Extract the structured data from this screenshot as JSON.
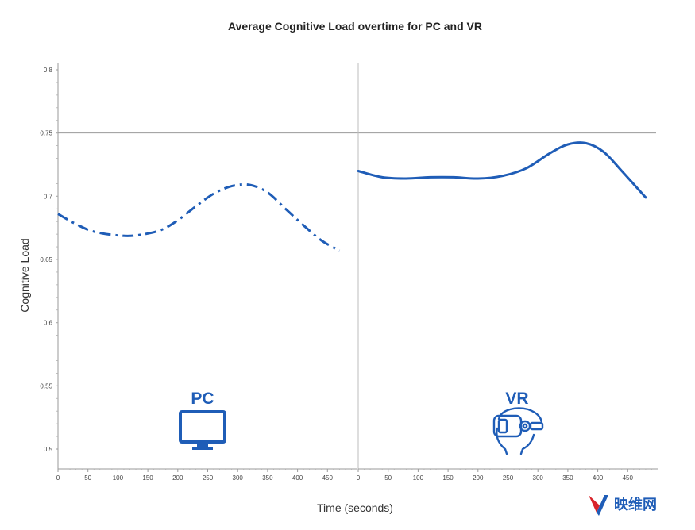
{
  "chart_data": {
    "type": "line",
    "title": "Average Cognitive Load overtime for PC and VR",
    "xlabel": "Time (seconds)",
    "ylabel": "Cognitive Load",
    "ylim": [
      0.5,
      0.8
    ],
    "y_ticks": [
      "0.5",
      "0.55",
      "0.6",
      "0.65",
      "0.7",
      "0.75",
      "0.8"
    ],
    "y_tick_values": [
      0.5,
      0.55,
      0.6,
      0.65,
      0.7,
      0.75,
      0.8
    ],
    "reference_line_y": 0.75,
    "grid": false,
    "color": "#1f5db7",
    "panels": [
      {
        "label": "PC",
        "icon": "monitor-icon",
        "xlim": [
          0,
          500
        ],
        "x_ticks": [
          "0",
          "50",
          "100",
          "150",
          "200",
          "250",
          "300",
          "350",
          "400",
          "450"
        ],
        "x_tick_values": [
          0,
          50,
          100,
          150,
          200,
          250,
          300,
          350,
          400,
          450
        ],
        "line_style": "dash-dot",
        "x": [
          0,
          30,
          60,
          100,
          130,
          170,
          200,
          230,
          260,
          290,
          320,
          350,
          380,
          410,
          440,
          470
        ],
        "y": [
          0.686,
          0.678,
          0.672,
          0.669,
          0.669,
          0.673,
          0.681,
          0.692,
          0.702,
          0.708,
          0.709,
          0.703,
          0.69,
          0.677,
          0.665,
          0.657
        ]
      },
      {
        "label": "VR",
        "icon": "vr-headset-icon",
        "xlim": [
          0,
          500
        ],
        "x_ticks": [
          "0",
          "50",
          "100",
          "150",
          "200",
          "250",
          "300",
          "350",
          "400",
          "450"
        ],
        "x_tick_values": [
          0,
          50,
          100,
          150,
          200,
          250,
          300,
          350,
          400,
          450
        ],
        "line_style": "solid",
        "x": [
          0,
          40,
          80,
          120,
          160,
          200,
          240,
          280,
          320,
          350,
          380,
          410,
          440,
          480
        ],
        "y": [
          0.72,
          0.715,
          0.714,
          0.715,
          0.715,
          0.714,
          0.716,
          0.722,
          0.734,
          0.741,
          0.742,
          0.735,
          0.72,
          0.699
        ]
      }
    ]
  },
  "watermark": {
    "text": "映维网",
    "color": "#1f5db7",
    "accent": "#d9232a"
  }
}
